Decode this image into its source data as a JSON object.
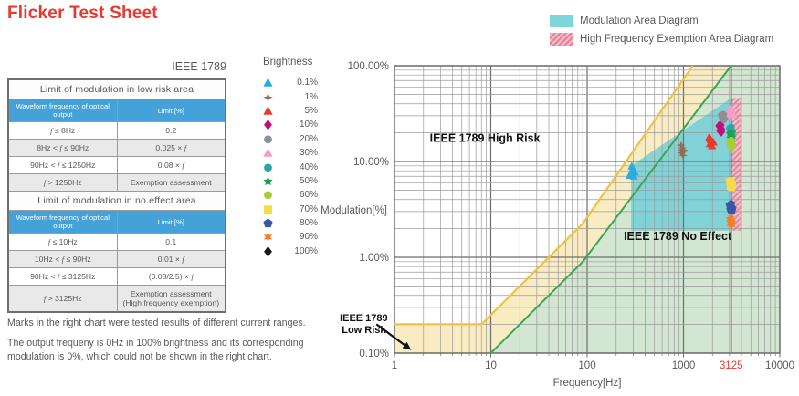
{
  "title": "Flicker Test Sheet",
  "table": {
    "caption": "IEEE 1789",
    "sections": [
      {
        "title": "Limit of modulation in low risk area",
        "columns": [
          "Waveform frequency of optical output",
          "Limit [%]"
        ],
        "rows": [
          [
            "f ≤ 8Hz",
            "0.2"
          ],
          [
            "8Hz < f ≤ 90Hz",
            "0.025 × f"
          ],
          [
            "90Hz < f ≤ 1250Hz",
            "0.08 × f"
          ],
          [
            "f > 1250Hz",
            "Exemption assessment"
          ]
        ]
      },
      {
        "title": "Limit of modulation in no effect area",
        "columns": [
          "Waveform frequency of optical output",
          "Limit [%]"
        ],
        "rows": [
          [
            "f ≤ 10Hz",
            "0.1"
          ],
          [
            "10Hz < f ≤ 90Hz",
            "0.01 × f"
          ],
          [
            "90Hz < f ≤ 3125Hz",
            "(0.08/2.5) × f"
          ],
          [
            "f > 3125Hz",
            "Exemption assessment\n(High frequency exemption)"
          ]
        ]
      }
    ]
  },
  "notes": [
    "Marks in the right chart were tested results of different current ranges.",
    "The output frequeny is 0Hz in 100% brightness and its corresponding modulation is 0%, which could not be shown in the right chart."
  ],
  "brightness_legend": {
    "title": "Brightness",
    "items": [
      {
        "value": "0.1%",
        "marker": "triangle",
        "color": "#2aabe2"
      },
      {
        "value": "1%",
        "marker": "star4",
        "color": "#8f6e56"
      },
      {
        "value": "5%",
        "marker": "triangle",
        "color": "#e8392e"
      },
      {
        "value": "10%",
        "marker": "diamond",
        "color": "#c10d7c"
      },
      {
        "value": "20%",
        "marker": "circle",
        "color": "#8f9091"
      },
      {
        "value": "30%",
        "marker": "triangle",
        "color": "#f59cc8"
      },
      {
        "value": "40%",
        "marker": "circle",
        "color": "#2ba6a4"
      },
      {
        "value": "50%",
        "marker": "star5",
        "color": "#1fa24a"
      },
      {
        "value": "60%",
        "marker": "circle",
        "color": "#a8cc3a"
      },
      {
        "value": "70%",
        "marker": "square",
        "color": "#f8d948"
      },
      {
        "value": "80%",
        "marker": "pentagon",
        "color": "#3a57a7"
      },
      {
        "value": "90%",
        "marker": "star6",
        "color": "#f57e20"
      },
      {
        "value": "100%",
        "marker": "diamond",
        "color": "#1a1a1a"
      }
    ]
  },
  "area_legend": [
    {
      "label": "Modulation Area Diagram",
      "swatch": "solid",
      "color": "#7fd5dc"
    },
    {
      "label": "High Frequency Exemption Area Diagram",
      "swatch": "hatched",
      "color": "#f3bac8",
      "stripe_color": "#e77e95"
    }
  ],
  "chart_data": {
    "type": "scatter",
    "xlabel": "Frequency[Hz]",
    "ylabel": "Modulation[%]",
    "x_scale": "log",
    "y_scale": "log",
    "xlim": [
      1,
      10000
    ],
    "ylim": [
      0.1,
      100
    ],
    "grid": true,
    "x_ticks": [
      {
        "value": 1,
        "label": "1"
      },
      {
        "value": 10,
        "label": "10"
      },
      {
        "value": 100,
        "label": "100"
      },
      {
        "value": 1000,
        "label": "1000"
      },
      {
        "value": 3125,
        "label": "3125",
        "color": "#e8392e"
      },
      {
        "value": 10000,
        "label": "10000"
      }
    ],
    "y_ticks": [
      {
        "value": 100,
        "label": "100.00%"
      },
      {
        "value": 10,
        "label": "10.00%"
      },
      {
        "value": 1,
        "label": "1.00%"
      },
      {
        "value": 0.1,
        "label": "0.10%"
      }
    ],
    "regions": {
      "low_risk_area": {
        "color": "#f9ecc3",
        "points": [
          [
            1,
            0.2
          ],
          [
            8,
            0.2
          ],
          [
            90,
            2.25
          ],
          [
            1250,
            100
          ],
          [
            3125,
            100
          ],
          [
            90,
            0.9
          ],
          [
            10,
            0.1
          ],
          [
            1,
            0.1
          ]
        ]
      },
      "no_effect_area": {
        "color": "#d2e6d2",
        "points": [
          [
            10,
            0.1
          ],
          [
            90,
            0.9
          ],
          [
            3125,
            100
          ],
          [
            10000,
            100
          ],
          [
            10000,
            0.1
          ]
        ]
      },
      "modulation_area": {
        "color": "#6fcdd8",
        "opacity": 0.82,
        "points": [
          [
            286,
            1.9
          ],
          [
            286,
            9
          ],
          [
            3125,
            46
          ],
          [
            3125,
            1.9
          ]
        ]
      },
      "hf_exemption_area": {
        "color": "#f3bac8",
        "stripe_color": "#e77e95",
        "opacity": 0.92,
        "points": [
          [
            3125,
            1.9
          ],
          [
            3125,
            46
          ],
          [
            4000,
            46
          ],
          [
            4000,
            1.9
          ]
        ]
      }
    },
    "boundary_lines": {
      "low_risk_limit": {
        "color": "#efc145",
        "width": 2.2,
        "points": [
          [
            1,
            0.2
          ],
          [
            8,
            0.2
          ],
          [
            90,
            2.25
          ],
          [
            1250,
            100
          ]
        ]
      },
      "no_effect_limit": {
        "color": "#3aa558",
        "width": 2,
        "points": [
          [
            10,
            0.1
          ],
          [
            90,
            0.9
          ],
          [
            3125,
            100
          ]
        ]
      }
    },
    "vline": {
      "x": 3125,
      "color": "#c4503c"
    },
    "annotations": [
      {
        "text": "IEEE 1789 High Risk",
        "f": 8.7,
        "m": 16,
        "anchor": "middle",
        "bold": true,
        "size": 12.5
      },
      {
        "text": "IEEE 1789 No Effect",
        "f": 870,
        "m": 1.52,
        "anchor": "middle",
        "bold": true,
        "size": 12.5
      },
      {
        "lines": [
          "IEEE 1789",
          "Low Risk"
        ],
        "f": 0.48,
        "m": 0.215,
        "anchor": "middle",
        "bold": true,
        "size": 11,
        "arrow": {
          "from": [
            0.65,
            0.2
          ],
          "to": [
            1.42,
            0.112
          ]
        }
      }
    ],
    "series": [
      {
        "name": "0.1%",
        "marker": "triangle",
        "color": "#2aabe2",
        "points": [
          [
            278,
            7.1
          ],
          [
            295,
            8.3
          ],
          [
            312,
            7.7
          ],
          [
            290,
            8.9
          ],
          [
            305,
            7.0
          ],
          [
            300,
            8.0
          ],
          [
            285,
            7.6
          ]
        ]
      },
      {
        "name": "1%",
        "marker": "star4",
        "color": "#8f6e56",
        "points": [
          [
            945,
            14.8
          ],
          [
            975,
            13.9
          ],
          [
            1005,
            13.1
          ],
          [
            950,
            12.3
          ],
          [
            990,
            11.6
          ],
          [
            1015,
            12.8
          ],
          [
            965,
            13.3
          ]
        ]
      },
      {
        "name": "5%",
        "marker": "triangle",
        "color": "#e8392e",
        "points": [
          [
            1840,
            17.6
          ],
          [
            1920,
            16.8
          ],
          [
            2010,
            16.0
          ],
          [
            1880,
            15.2
          ],
          [
            1975,
            14.5
          ],
          [
            2050,
            15.8
          ],
          [
            1910,
            17.0
          ]
        ]
      },
      {
        "name": "10%",
        "marker": "diamond",
        "color": "#c10d7c",
        "points": [
          [
            2330,
            23.5
          ],
          [
            2430,
            22.5
          ],
          [
            2520,
            21.4
          ],
          [
            2380,
            21.0
          ],
          [
            2470,
            20.3
          ],
          [
            2450,
            24.0
          ]
        ]
      },
      {
        "name": "20%",
        "marker": "circle",
        "color": "#8f9091",
        "points": [
          [
            2480,
            30.5
          ],
          [
            2580,
            29.3
          ],
          [
            2670,
            28.2
          ],
          [
            2530,
            28.8
          ],
          [
            2620,
            27.4
          ],
          [
            2600,
            31.0
          ]
        ]
      },
      {
        "name": "30%",
        "marker": "triangle",
        "color": "#f59cc8",
        "points": [
          [
            3010,
            34.8
          ],
          [
            3120,
            33.4
          ],
          [
            3230,
            32.0
          ],
          [
            3060,
            31.4
          ],
          [
            3170,
            30.6
          ],
          [
            3125,
            35.5
          ]
        ]
      },
      {
        "name": "40%",
        "marker": "circle",
        "color": "#2ba6a4",
        "points": [
          [
            3020,
            22.2
          ],
          [
            3120,
            21.3
          ],
          [
            3220,
            20.4
          ],
          [
            3070,
            20.0
          ],
          [
            3170,
            19.4
          ],
          [
            3125,
            22.8
          ]
        ]
      },
      {
        "name": "50%",
        "marker": "star5",
        "color": "#1fa24a",
        "points": [
          [
            3020,
            19.6
          ],
          [
            3120,
            18.8
          ],
          [
            3220,
            18.0
          ],
          [
            3070,
            17.5
          ],
          [
            3170,
            17.1
          ],
          [
            3125,
            20.1
          ]
        ]
      },
      {
        "name": "60%",
        "marker": "circle",
        "color": "#a8cc3a",
        "points": [
          [
            3020,
            16.2
          ],
          [
            3120,
            15.5
          ],
          [
            3220,
            14.9
          ],
          [
            3070,
            14.5
          ],
          [
            3170,
            14.1
          ],
          [
            3125,
            16.6
          ]
        ]
      },
      {
        "name": "70%",
        "marker": "square",
        "color": "#f8d948",
        "points": [
          [
            3020,
            6.15
          ],
          [
            3120,
            5.9
          ],
          [
            3220,
            5.65
          ],
          [
            3070,
            5.5
          ],
          [
            3170,
            5.35
          ],
          [
            3125,
            6.3
          ]
        ]
      },
      {
        "name": "80%",
        "marker": "pentagon",
        "color": "#3a57a7",
        "points": [
          [
            3020,
            3.5
          ],
          [
            3120,
            3.36
          ],
          [
            3220,
            3.22
          ],
          [
            3070,
            3.14
          ],
          [
            3170,
            3.05
          ],
          [
            3125,
            3.6
          ]
        ]
      },
      {
        "name": "90%",
        "marker": "star6",
        "color": "#f57e20",
        "points": [
          [
            3020,
            2.5
          ],
          [
            3120,
            2.4
          ],
          [
            3220,
            2.3
          ],
          [
            3070,
            2.24
          ],
          [
            3170,
            2.18
          ],
          [
            3125,
            2.57
          ]
        ]
      },
      {
        "name": "100%",
        "marker": "diamond",
        "color": "#1a1a1a",
        "points": []
      }
    ]
  }
}
